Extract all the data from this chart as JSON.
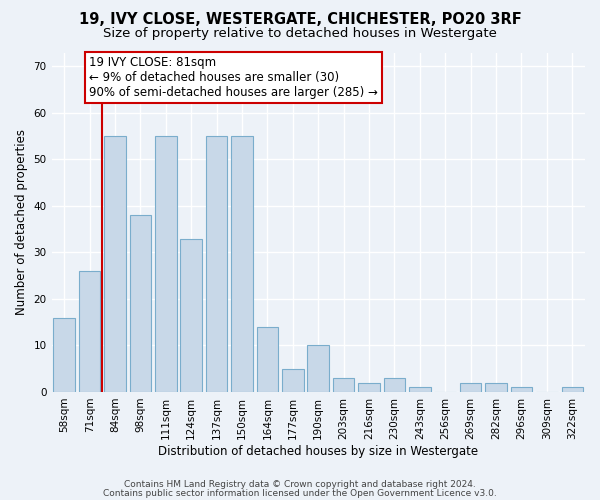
{
  "title1": "19, IVY CLOSE, WESTERGATE, CHICHESTER, PO20 3RF",
  "title2": "Size of property relative to detached houses in Westergate",
  "xlabel": "Distribution of detached houses by size in Westergate",
  "ylabel": "Number of detached properties",
  "categories": [
    "58sqm",
    "71sqm",
    "84sqm",
    "98sqm",
    "111sqm",
    "124sqm",
    "137sqm",
    "150sqm",
    "164sqm",
    "177sqm",
    "190sqm",
    "203sqm",
    "216sqm",
    "230sqm",
    "243sqm",
    "256sqm",
    "269sqm",
    "282sqm",
    "296sqm",
    "309sqm",
    "322sqm"
  ],
  "values": [
    16,
    26,
    55,
    38,
    55,
    33,
    55,
    55,
    14,
    5,
    10,
    3,
    2,
    3,
    1,
    0,
    2,
    2,
    1,
    0,
    1
  ],
  "bar_color": "#c8d8e8",
  "bar_edge_color": "#7aadcc",
  "bar_width": 0.85,
  "vline_x": 1.5,
  "vline_color": "#cc0000",
  "annotation_line1": "19 IVY CLOSE: 81sqm",
  "annotation_line2": "← 9% of detached houses are smaller (30)",
  "annotation_line3": "90% of semi-detached houses are larger (285) →",
  "ylim": [
    0,
    73
  ],
  "yticks": [
    0,
    10,
    20,
    30,
    40,
    50,
    60,
    70
  ],
  "background_color": "#edf2f8",
  "plot_bg_color": "#edf2f8",
  "grid_color": "#ffffff",
  "footer1": "Contains HM Land Registry data © Crown copyright and database right 2024.",
  "footer2": "Contains public sector information licensed under the Open Government Licence v3.0.",
  "title1_fontsize": 10.5,
  "title2_fontsize": 9.5,
  "xlabel_fontsize": 8.5,
  "ylabel_fontsize": 8.5,
  "tick_fontsize": 7.5,
  "footer_fontsize": 6.5,
  "annot_fontsize": 8.5
}
